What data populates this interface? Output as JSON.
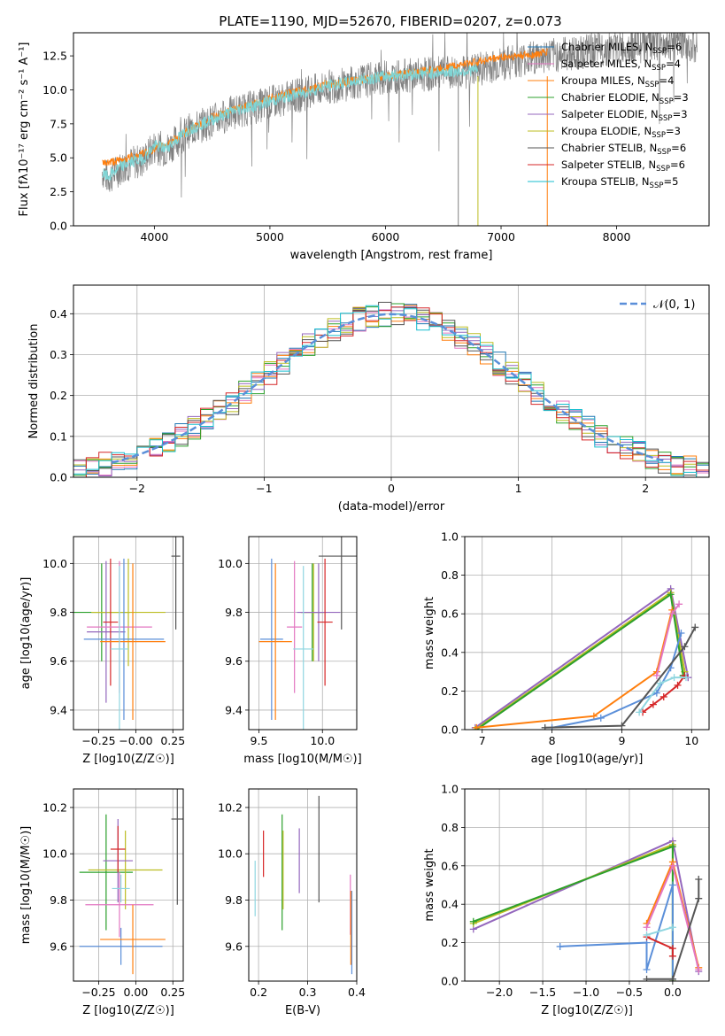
{
  "figure_title": "PLATE=1190, MJD=52670, FIBERID=0207, z=0.073",
  "models": [
    {
      "name": "Chabrier MILES",
      "nssp": "6",
      "color": "#1f77b4"
    },
    {
      "name": "Salpeter MILES",
      "nssp": "4",
      "color": "#e377c2"
    },
    {
      "name": "Kroupa MILES",
      "nssp": "4",
      "color": "#ff7f0e"
    },
    {
      "name": "Chabrier ELODIE",
      "nssp": "3",
      "color": "#2ca02c"
    },
    {
      "name": "Salpeter ELODIE",
      "nssp": "3",
      "color": "#9467bd"
    },
    {
      "name": "Kroupa ELODIE",
      "nssp": "3",
      "color": "#bcbd22"
    },
    {
      "name": "Chabrier STELIB",
      "nssp": "6",
      "color": "#555555"
    },
    {
      "name": "Salpeter STELIB",
      "nssp": "6",
      "color": "#d62728"
    },
    {
      "name": "Kroupa STELIB",
      "nssp": "5",
      "color": "#17becf"
    }
  ],
  "chart_data": [
    {
      "id": "spectrum",
      "type": "line",
      "xlabel": "wavelength [Angstrom, rest frame]",
      "ylabel": "Flux [fλ10⁻¹⁷ erg cm⁻² s⁻¹ A⁻¹]",
      "xlim": [
        3300,
        8800
      ],
      "ylim": [
        0,
        14.2
      ],
      "xticks": [
        4000,
        5000,
        6000,
        7000,
        8000
      ],
      "yticks": [
        0.0,
        2.5,
        5.0,
        7.5,
        10.0,
        12.5
      ],
      "data_curve": {
        "color": "#808080",
        "x": [
          3550,
          3600,
          3700,
          3800,
          3900,
          4000,
          4100,
          4300,
          4500,
          4700,
          4900,
          5100,
          5300,
          5500,
          5700,
          5900,
          6100,
          6300,
          6500,
          6700,
          6900,
          7100,
          7300,
          7500,
          7700,
          7900,
          8100,
          8300,
          8500,
          8700
        ],
        "y": [
          4.0,
          3.5,
          4.2,
          4.6,
          4.8,
          5.8,
          5.6,
          7.0,
          7.7,
          8.4,
          8.8,
          9.3,
          9.7,
          10.2,
          10.5,
          10.8,
          11.0,
          11.1,
          11.2,
          11.3,
          11.7,
          12.1,
          12.4,
          12.6,
          12.8,
          13.0,
          13.2,
          13.3,
          13.4,
          13.3
        ]
      },
      "model_curve": {
        "color": "#7fd5d5",
        "x": [
          3550,
          3600,
          3700,
          3800,
          3900,
          4000,
          4100,
          4300,
          4500,
          4700,
          4900,
          5100,
          5300,
          5500,
          5700,
          5900,
          6100,
          6300,
          6500,
          6700,
          6800
        ],
        "y": [
          3.8,
          3.6,
          4.3,
          4.7,
          4.9,
          5.9,
          5.7,
          7.1,
          7.8,
          8.5,
          8.9,
          9.4,
          9.8,
          10.3,
          10.6,
          10.9,
          11.1,
          11.2,
          11.3,
          11.4,
          11.5
        ]
      },
      "orange_curve": {
        "color": "#ff7f0e",
        "x": [
          3550,
          3700,
          3900,
          4100,
          4500,
          5000,
          5500,
          6000,
          6500,
          7000,
          7300,
          7400
        ],
        "y": [
          4.6,
          4.8,
          5.3,
          6.0,
          8.0,
          9.4,
          10.4,
          11.0,
          11.6,
          12.4,
          12.6,
          12.8
        ]
      }
    },
    {
      "id": "residuals",
      "type": "histogram",
      "xlabel": "(data-model)/error",
      "ylabel": "Normed distribution",
      "xlim": [
        -2.5,
        2.5
      ],
      "ylim": [
        0,
        0.47
      ],
      "xticks": [
        -2,
        -1,
        0,
        1,
        2
      ],
      "yticks": [
        0.0,
        0.1,
        0.2,
        0.3,
        0.4
      ],
      "gaussian_label": "𝒩(0, 1)",
      "gaussian_color": "#5b8fd9",
      "bin_width": 0.1
    },
    {
      "id": "z-age",
      "type": "error_bars",
      "xlabel": "Z [log10(Z/Z☉)]",
      "ylabel": "age  [log10(age/yr)]",
      "xlim": [
        -0.42,
        0.32
      ],
      "ylim": [
        9.32,
        10.11
      ],
      "xticks": [
        -0.25,
        0.0,
        0.25
      ],
      "xtick_labels": [
        "−0.25",
        "−0.00",
        "0.25"
      ],
      "yticks": [
        9.4,
        9.6,
        9.8,
        10.0
      ],
      "points": [
        {
          "x": -0.23,
          "xerr": 0.19,
          "y": 9.8,
          "yerr": 0.2,
          "color": "#2ca02c"
        },
        {
          "x": -0.05,
          "xerr": 0.25,
          "y": 9.8,
          "yerr": 0.22,
          "color": "#bcbd22"
        },
        {
          "x": -0.2,
          "xerr": 0.13,
          "y": 9.72,
          "yerr": 0.29,
          "color": "#9467bd"
        },
        {
          "x": 0.27,
          "xerr": 0.03,
          "y": 10.03,
          "yerr": 0.3,
          "color": "#555555"
        },
        {
          "x": -0.17,
          "xerr": 0.05,
          "y": 9.76,
          "yerr": 0.26,
          "color": "#d62728"
        },
        {
          "x": -0.11,
          "xerr": 0.22,
          "y": 9.74,
          "yerr": 0.27,
          "color": "#e377c2"
        },
        {
          "x": -0.08,
          "xerr": 0.27,
          "y": 9.69,
          "yerr": 0.33,
          "color": "#5b8fd9"
        },
        {
          "x": -0.02,
          "xerr": 0.22,
          "y": 9.68,
          "yerr": 0.32,
          "color": "#ff7f0e"
        },
        {
          "x": -0.11,
          "xerr": 0.06,
          "y": 9.65,
          "yerr": 0.34,
          "color": "#8fd6e0"
        }
      ]
    },
    {
      "id": "mass-age",
      "type": "error_bars",
      "xlabel": "mass [log10(M/M☉)]",
      "ylabel": "",
      "xlim": [
        9.42,
        10.27
      ],
      "ylim": [
        9.32,
        10.11
      ],
      "xticks": [
        9.5,
        10.0
      ],
      "yticks": [
        9.4,
        9.6,
        9.8,
        10.0
      ],
      "points": [
        {
          "x": 9.92,
          "xerr": 0.09,
          "y": 9.8,
          "yerr": 0.2,
          "color": "#2ca02c"
        },
        {
          "x": 9.93,
          "xerr": 0.1,
          "y": 9.8,
          "yerr": 0.2,
          "color": "#bcbd22"
        },
        {
          "x": 9.97,
          "xerr": 0.17,
          "y": 9.8,
          "yerr": 0.2,
          "color": "#9467bd"
        },
        {
          "x": 10.15,
          "xerr": 0.18,
          "y": 10.03,
          "yerr": 0.3,
          "color": "#555555"
        },
        {
          "x": 10.02,
          "xerr": 0.06,
          "y": 9.76,
          "yerr": 0.26,
          "color": "#d62728"
        },
        {
          "x": 9.78,
          "xerr": 0.06,
          "y": 9.74,
          "yerr": 0.27,
          "color": "#e377c2"
        },
        {
          "x": 9.6,
          "xerr": 0.09,
          "y": 9.69,
          "yerr": 0.33,
          "color": "#5b8fd9"
        },
        {
          "x": 9.63,
          "xerr": 0.13,
          "y": 9.68,
          "yerr": 0.32,
          "color": "#ff7f0e"
        },
        {
          "x": 9.85,
          "xerr": 0.08,
          "y": 9.65,
          "yerr": 0.34,
          "color": "#8fd6e0"
        }
      ]
    },
    {
      "id": "age-weight",
      "type": "line",
      "xlabel": "age  [log10(age/yr)]",
      "ylabel": "mass weight",
      "xlim": [
        6.75,
        10.25
      ],
      "ylim": [
        0,
        1.0
      ],
      "xticks": [
        7,
        8,
        9,
        10
      ],
      "yticks": [
        0.0,
        0.2,
        0.4,
        0.6,
        0.8,
        1.0
      ],
      "series": [
        {
          "color": "#9467bd",
          "x": [
            6.9,
            9.7,
            9.95,
            9.95
          ],
          "y": [
            0.01,
            0.73,
            0.27,
            0.27
          ]
        },
        {
          "color": "#bcbd22",
          "x": [
            6.9,
            9.7,
            9.9,
            9.9
          ],
          "y": [
            0.0,
            0.71,
            0.3,
            0.3
          ]
        },
        {
          "color": "#2ca02c",
          "x": [
            6.92,
            9.7,
            9.88,
            9.88
          ],
          "y": [
            0.0,
            0.7,
            0.28,
            0.28
          ]
        },
        {
          "color": "#ff7f0e",
          "x": [
            6.92,
            8.6,
            9.5,
            9.72
          ],
          "y": [
            0.01,
            0.07,
            0.3,
            0.62
          ]
        },
        {
          "color": "#e377c2",
          "x": [
            9.5,
            9.72,
            9.82
          ],
          "y": [
            0.28,
            0.6,
            0.65
          ]
        },
        {
          "color": "#5b8fd9",
          "x": [
            8.0,
            8.7,
            9.5,
            9.7,
            9.85
          ],
          "y": [
            0.01,
            0.06,
            0.19,
            0.32,
            0.5
          ]
        },
        {
          "color": "#d62728",
          "x": [
            9.3,
            9.45,
            9.6,
            9.8,
            9.9
          ],
          "y": [
            0.09,
            0.13,
            0.17,
            0.23,
            0.28
          ]
        },
        {
          "color": "#555555",
          "x": [
            7.9,
            9.0,
            9.9,
            10.05
          ],
          "y": [
            0.01,
            0.02,
            0.43,
            0.53
          ]
        },
        {
          "color": "#8fd6e0",
          "x": [
            9.25,
            9.55,
            9.75,
            9.92
          ],
          "y": [
            0.09,
            0.24,
            0.27,
            0.27
          ]
        }
      ]
    },
    {
      "id": "z-mass",
      "type": "error_bars",
      "xlabel": "Z [log10(Z/Z☉)]",
      "ylabel": "mass [log10(M/M☉)]",
      "xlim": [
        -0.42,
        0.32
      ],
      "ylim": [
        9.45,
        10.28
      ],
      "xticks": [
        -0.25,
        0.0,
        0.25
      ],
      "xtick_labels": [
        "−0.25",
        "0.00",
        "0.25"
      ],
      "yticks": [
        9.6,
        9.8,
        10.0,
        10.2
      ],
      "points": [
        {
          "x": -0.2,
          "xerr": 0.18,
          "y": 9.92,
          "yerr": 0.25,
          "color": "#2ca02c"
        },
        {
          "x": -0.07,
          "xerr": 0.25,
          "y": 9.93,
          "yerr": 0.17,
          "color": "#bcbd22"
        },
        {
          "x": -0.12,
          "xerr": 0.1,
          "y": 9.97,
          "yerr": 0.18,
          "color": "#9467bd"
        },
        {
          "x": 0.28,
          "xerr": 0.04,
          "y": 10.15,
          "yerr": 0.37,
          "color": "#555555"
        },
        {
          "x": -0.12,
          "xerr": 0.05,
          "y": 10.02,
          "yerr": 0.1,
          "color": "#d62728"
        },
        {
          "x": -0.11,
          "xerr": 0.23,
          "y": 9.78,
          "yerr": 0.14,
          "color": "#e377c2"
        },
        {
          "x": -0.1,
          "xerr": 0.28,
          "y": 9.6,
          "yerr": 0.08,
          "color": "#5b8fd9"
        },
        {
          "x": -0.02,
          "xerr": 0.22,
          "y": 9.63,
          "yerr": 0.15,
          "color": "#ff7f0e"
        },
        {
          "x": -0.1,
          "xerr": 0.06,
          "y": 9.85,
          "yerr": 0.06,
          "color": "#8fd6e0"
        }
      ]
    },
    {
      "id": "ebv-mass",
      "type": "error_bars",
      "xlabel": "E(B-V)",
      "ylabel": "",
      "xlim": [
        0.18,
        0.4
      ],
      "ylim": [
        9.45,
        10.28
      ],
      "xticks": [
        0.2,
        0.3,
        0.4
      ],
      "yticks": [
        9.6,
        9.8,
        10.0,
        10.2
      ],
      "points": [
        {
          "x": 0.248,
          "xerr": 0,
          "y": 9.92,
          "yerr": 0.25,
          "color": "#2ca02c"
        },
        {
          "x": 0.25,
          "xerr": 0,
          "y": 9.93,
          "yerr": 0.17,
          "color": "#bcbd22"
        },
        {
          "x": 0.283,
          "xerr": 0,
          "y": 9.97,
          "yerr": 0.14,
          "color": "#9467bd"
        },
        {
          "x": 0.323,
          "xerr": 0,
          "y": 10.02,
          "yerr": 0.23,
          "color": "#555555"
        },
        {
          "x": 0.21,
          "xerr": 0,
          "y": 10.0,
          "yerr": 0.1,
          "color": "#d62728"
        },
        {
          "x": 0.387,
          "xerr": 0,
          "y": 9.78,
          "yerr": 0.13,
          "color": "#e377c2"
        },
        {
          "x": 0.39,
          "xerr": 0,
          "y": 9.66,
          "yerr": 0.18,
          "color": "#5b8fd9"
        },
        {
          "x": 0.388,
          "xerr": 0,
          "y": 9.68,
          "yerr": 0.16,
          "color": "#ff7f0e"
        },
        {
          "x": 0.193,
          "xerr": 0,
          "y": 9.85,
          "yerr": 0.12,
          "color": "#8fd6e0"
        }
      ]
    },
    {
      "id": "z-weight",
      "type": "line",
      "xlabel": "Z [log10(Z/Z☉)]",
      "ylabel": "mass weight",
      "xlim": [
        -2.4,
        0.42
      ],
      "ylim": [
        0,
        1.0
      ],
      "xticks": [
        -2.0,
        -1.5,
        -1.0,
        -0.5,
        0.0
      ],
      "yticks": [
        0.0,
        0.2,
        0.4,
        0.6,
        0.8,
        1.0
      ],
      "series": [
        {
          "color": "#9467bd",
          "x": [
            -2.3,
            0.0,
            0.3
          ],
          "y": [
            0.27,
            0.73,
            0.05
          ]
        },
        {
          "color": "#bcbd22",
          "x": [
            -2.3,
            0.0,
            0.0
          ],
          "y": [
            0.3,
            0.71,
            0.0
          ]
        },
        {
          "color": "#2ca02c",
          "x": [
            -2.3,
            0.0,
            0.0
          ],
          "y": [
            0.31,
            0.7,
            0.0
          ]
        },
        {
          "color": "#ff7f0e",
          "x": [
            -0.3,
            0.0,
            0.3
          ],
          "y": [
            0.3,
            0.62,
            0.07
          ]
        },
        {
          "color": "#e377c2",
          "x": [
            -0.3,
            0.0,
            0.3
          ],
          "y": [
            0.28,
            0.6,
            0.06
          ]
        },
        {
          "color": "#5b8fd9",
          "x": [
            -1.3,
            -0.3,
            -0.3,
            0.0,
            0.0
          ],
          "y": [
            0.18,
            0.2,
            0.06,
            0.5,
            0.01
          ]
        },
        {
          "color": "#d62728",
          "x": [
            -0.3,
            0.0,
            0.0
          ],
          "y": [
            0.23,
            0.17,
            0.13
          ]
        },
        {
          "color": "#555555",
          "x": [
            -0.3,
            0.0,
            0.3,
            0.3
          ],
          "y": [
            0.01,
            0.01,
            0.43,
            0.53
          ]
        },
        {
          "color": "#8fd6e0",
          "x": [
            -0.3,
            0.0
          ],
          "y": [
            0.24,
            0.28
          ]
        }
      ]
    }
  ]
}
